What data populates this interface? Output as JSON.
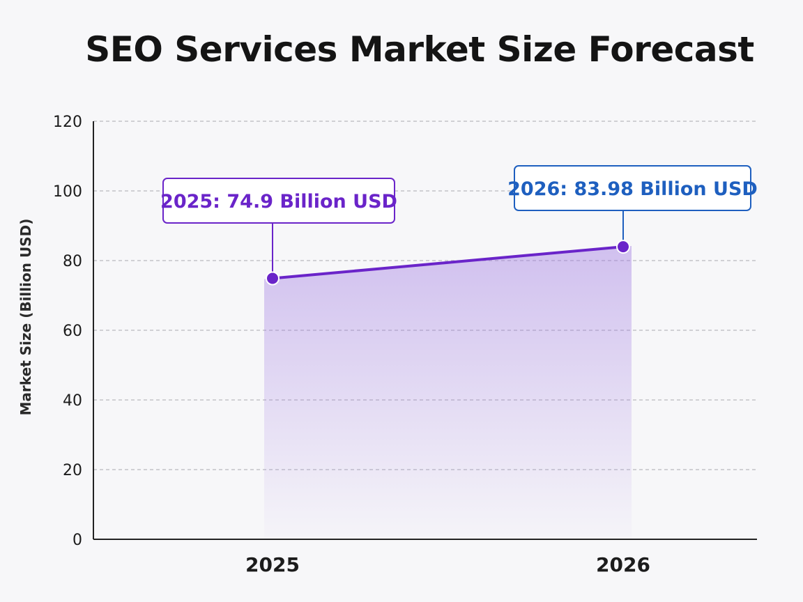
{
  "chart_data": {
    "type": "area",
    "title": "SEO Services Market Size Forecast",
    "xlabel": "",
    "ylabel": "Market Size (Billion USD)",
    "categories": [
      "2025",
      "2026"
    ],
    "values": [
      74.9,
      83.98
    ],
    "ylim": [
      0,
      120
    ],
    "yticks": [
      0,
      20,
      40,
      60,
      80,
      100,
      120
    ],
    "grid": true,
    "annotations": [
      {
        "text": "2025: 74.9 Billion USD",
        "color": "#6a24c9"
      },
      {
        "text": "2026: 83.98 Billion USD",
        "color": "#1e5fbf"
      }
    ],
    "colors": {
      "line": "#6a24c9",
      "marker": "#6a24c9",
      "fill": "#9b74e0",
      "grid": "#b9b9be",
      "axis": "#222222"
    }
  }
}
